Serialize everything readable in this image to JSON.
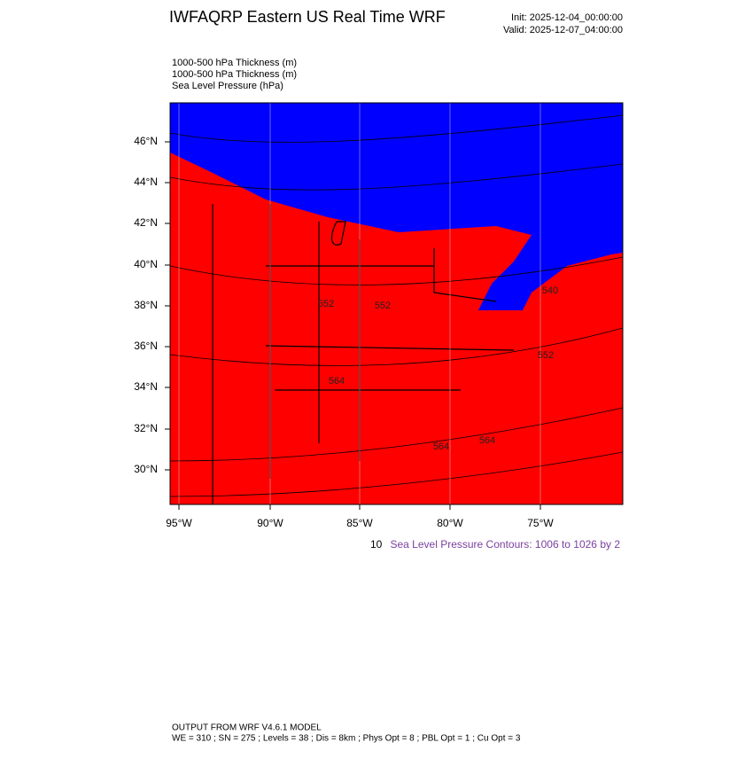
{
  "header": {
    "title": "IWFAQRP Eastern US Real Time WRF",
    "init": "Init: 2025-12-04_00:00:00",
    "valid": "Valid: 2025-12-07_04:00:00"
  },
  "fields": [
    "1000-500 hPa Thickness   (m)",
    "1000-500 hPa Thickness   (m)",
    "Sea Level Pressure   (hPa)"
  ],
  "map": {
    "lat_labels": [
      "46°N",
      "44°N",
      "42°N",
      "40°N",
      "38°N",
      "36°N",
      "34°N",
      "32°N",
      "30°N"
    ],
    "lon_labels": [
      "95°W",
      "90°W",
      "85°W",
      "80°W",
      "75°W"
    ],
    "contour_labels": [
      "552",
      "552",
      "564",
      "564",
      "564",
      "552",
      "540"
    ]
  },
  "contour_note_prefix": "10",
  "contour_note": "Sea Level Pressure Contours: 1006 to 1026 by 2",
  "footer": {
    "line1": "OUTPUT FROM WRF V4.6.1 MODEL",
    "line2": "WE = 310 ; SN = 275 ; Levels = 38 ; Dis = 8km ; Phys Opt = 8 ; PBL Opt = 1 ; Cu Opt = 3"
  }
}
